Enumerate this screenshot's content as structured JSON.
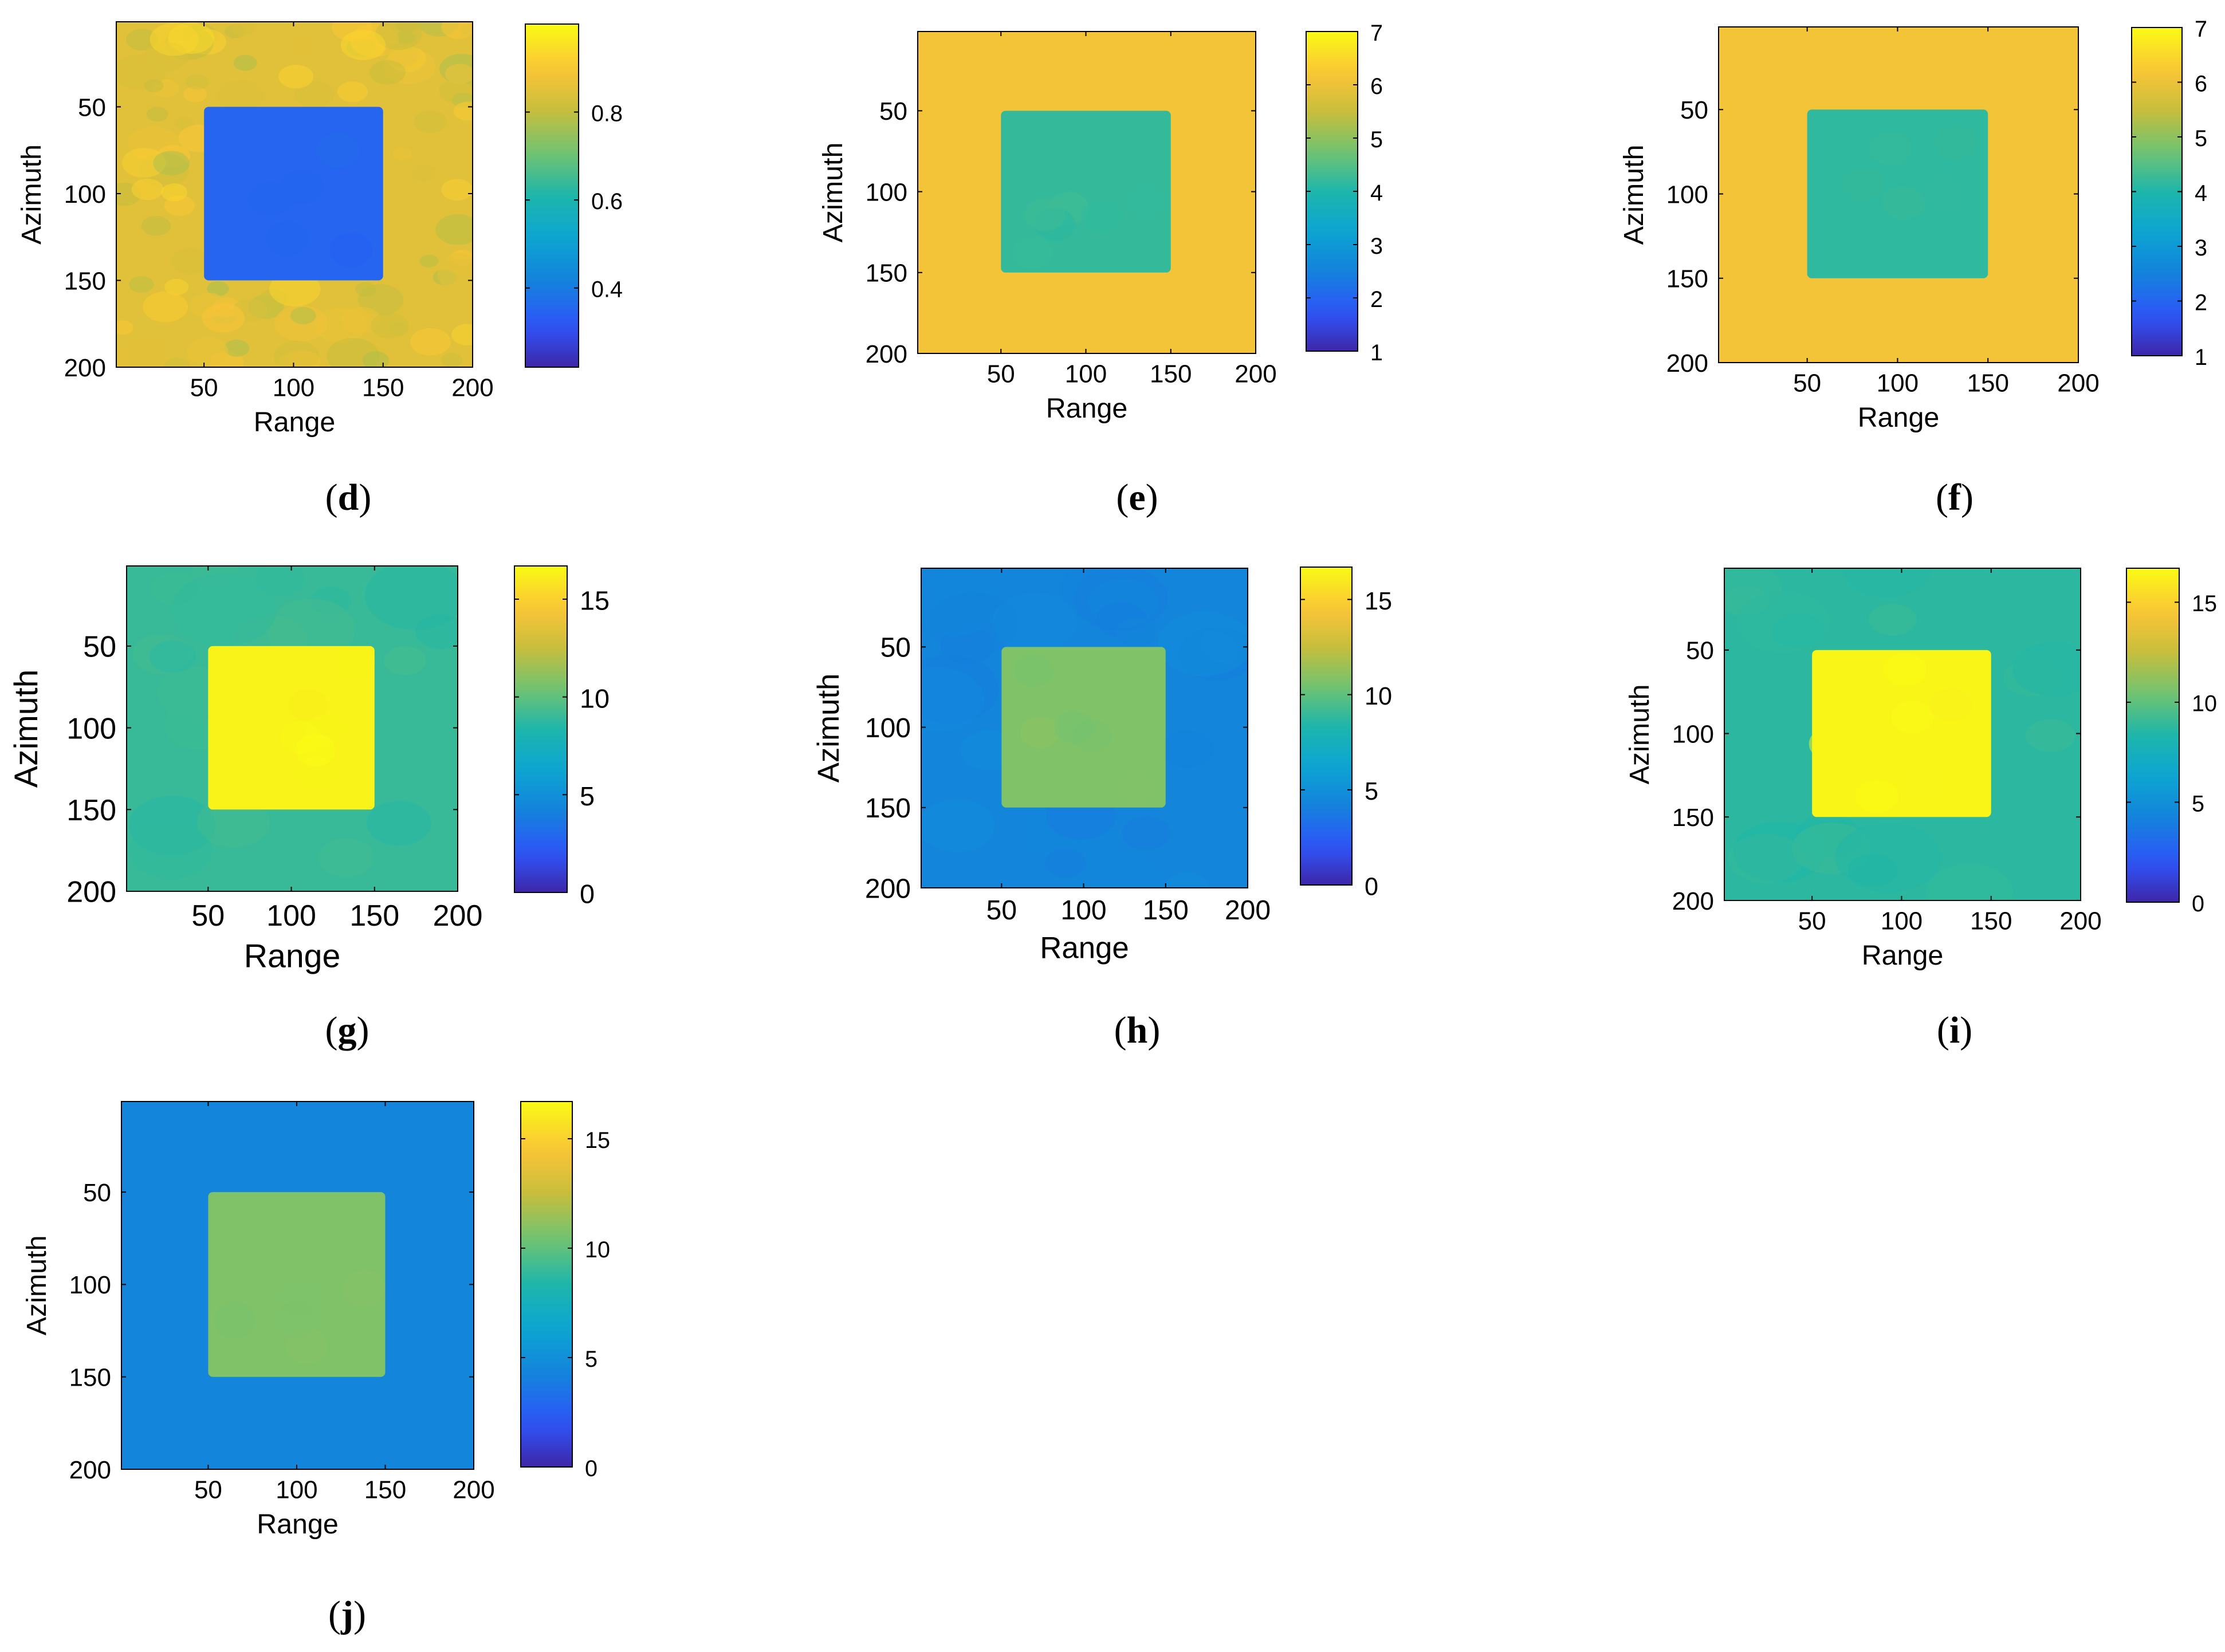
{
  "figure": {
    "panels_order": [
      "d",
      "e",
      "f",
      "g",
      "h",
      "i",
      "j"
    ]
  },
  "chart_data": [
    {
      "id": "d",
      "type": "heatmap",
      "caption_letter": "d",
      "xlabel": "Range",
      "ylabel": "Azimuth",
      "x_range": [
        1,
        200
      ],
      "y_range": [
        1,
        200
      ],
      "x_ticks": [
        "50",
        "100",
        "150",
        "200"
      ],
      "y_ticks": [
        "50",
        "100",
        "150",
        "200"
      ],
      "colorbar": {
        "range": [
          0.22,
          1.0
        ],
        "ticks": [
          "0.4",
          "0.6",
          "0.8"
        ],
        "tick_values": [
          0.4,
          0.6,
          0.8
        ]
      },
      "background": {
        "value": 0.85,
        "texture": "strong"
      },
      "square": {
        "x_range": [
          50,
          150
        ],
        "y_range": [
          50,
          150
        ],
        "value": 0.35
      }
    },
    {
      "id": "e",
      "type": "heatmap",
      "caption_letter": "e",
      "xlabel": "Range",
      "ylabel": "Azimuth",
      "x_range": [
        1,
        200
      ],
      "y_range": [
        1,
        200
      ],
      "x_ticks": [
        "50",
        "100",
        "150",
        "200"
      ],
      "y_ticks": [
        "50",
        "100",
        "150",
        "200"
      ],
      "colorbar": {
        "range": [
          1,
          7
        ],
        "ticks": [
          "1",
          "2",
          "3",
          "4",
          "5",
          "6",
          "7"
        ],
        "tick_values": [
          1,
          2,
          3,
          4,
          5,
          6,
          7
        ]
      },
      "background": {
        "value": 6.1,
        "texture": "none"
      },
      "square": {
        "x_range": [
          50,
          150
        ],
        "y_range": [
          50,
          150
        ],
        "value": 4.2
      }
    },
    {
      "id": "f",
      "type": "heatmap",
      "caption_letter": "f",
      "xlabel": "Range",
      "ylabel": "Azimuth",
      "x_range": [
        1,
        200
      ],
      "y_range": [
        1,
        200
      ],
      "x_ticks": [
        "50",
        "100",
        "150",
        "200"
      ],
      "y_ticks": [
        "50",
        "100",
        "150",
        "200"
      ],
      "colorbar": {
        "range": [
          1,
          7
        ],
        "ticks": [
          "1",
          "2",
          "3",
          "4",
          "5",
          "6",
          "7"
        ],
        "tick_values": [
          1,
          2,
          3,
          4,
          5,
          6,
          7
        ]
      },
      "background": {
        "value": 6.1,
        "texture": "none"
      },
      "square": {
        "x_range": [
          50,
          150
        ],
        "y_range": [
          50,
          150
        ],
        "value": 4.15
      }
    },
    {
      "id": "g",
      "type": "heatmap",
      "caption_letter": "g",
      "xlabel": "Range",
      "ylabel": "Azimuth",
      "x_range": [
        1,
        200
      ],
      "y_range": [
        1,
        200
      ],
      "x_ticks": [
        "50",
        "100",
        "150",
        "200"
      ],
      "y_ticks": [
        "50",
        "100",
        "150",
        "200"
      ],
      "colorbar": {
        "range": [
          0,
          16.7
        ],
        "ticks": [
          "0",
          "5",
          "10",
          "15"
        ],
        "tick_values": [
          0,
          5,
          10,
          15
        ]
      },
      "background": {
        "value": 9.0,
        "texture": "light"
      },
      "square": {
        "x_range": [
          50,
          150
        ],
        "y_range": [
          50,
          150
        ],
        "value": 16.4
      }
    },
    {
      "id": "h",
      "type": "heatmap",
      "caption_letter": "h",
      "xlabel": "Range",
      "ylabel": "Azimuth",
      "x_range": [
        1,
        200
      ],
      "y_range": [
        1,
        200
      ],
      "x_ticks": [
        "50",
        "100",
        "150",
        "200"
      ],
      "y_ticks": [
        "50",
        "100",
        "150",
        "200"
      ],
      "colorbar": {
        "range": [
          0,
          16.7
        ],
        "ticks": [
          "0",
          "5",
          "10",
          "15"
        ],
        "tick_values": [
          0,
          5,
          10,
          15
        ]
      },
      "background": {
        "value": 4.4,
        "texture": "light"
      },
      "square": {
        "x_range": [
          50,
          150
        ],
        "y_range": [
          50,
          150
        ],
        "value": 10.8
      }
    },
    {
      "id": "i",
      "type": "heatmap",
      "caption_letter": "i",
      "xlabel": "Range",
      "ylabel": "Azimuth",
      "x_range": [
        1,
        200
      ],
      "y_range": [
        1,
        200
      ],
      "x_ticks": [
        "50",
        "100",
        "150",
        "200"
      ],
      "y_ticks": [
        "50",
        "100",
        "150",
        "200"
      ],
      "colorbar": {
        "range": [
          0,
          16.7
        ],
        "ticks": [
          "0",
          "5",
          "10",
          "15"
        ],
        "tick_values": [
          0,
          5,
          10,
          15
        ]
      },
      "background": {
        "value": 8.7,
        "texture": "light"
      },
      "square": {
        "x_range": [
          50,
          150
        ],
        "y_range": [
          50,
          150
        ],
        "value": 16.5
      }
    },
    {
      "id": "j",
      "type": "heatmap",
      "caption_letter": "j",
      "xlabel": "Range",
      "ylabel": "Azimuth",
      "x_range": [
        1,
        200
      ],
      "y_range": [
        1,
        200
      ],
      "x_ticks": [
        "50",
        "100",
        "150",
        "200"
      ],
      "y_ticks": [
        "50",
        "100",
        "150",
        "200"
      ],
      "colorbar": {
        "range": [
          0,
          16.7
        ],
        "ticks": [
          "0",
          "5",
          "10",
          "15"
        ],
        "tick_values": [
          0,
          5,
          10,
          15
        ]
      },
      "background": {
        "value": 4.4,
        "texture": "none"
      },
      "square": {
        "x_range": [
          50,
          150
        ],
        "y_range": [
          50,
          150
        ],
        "value": 10.8
      }
    }
  ]
}
